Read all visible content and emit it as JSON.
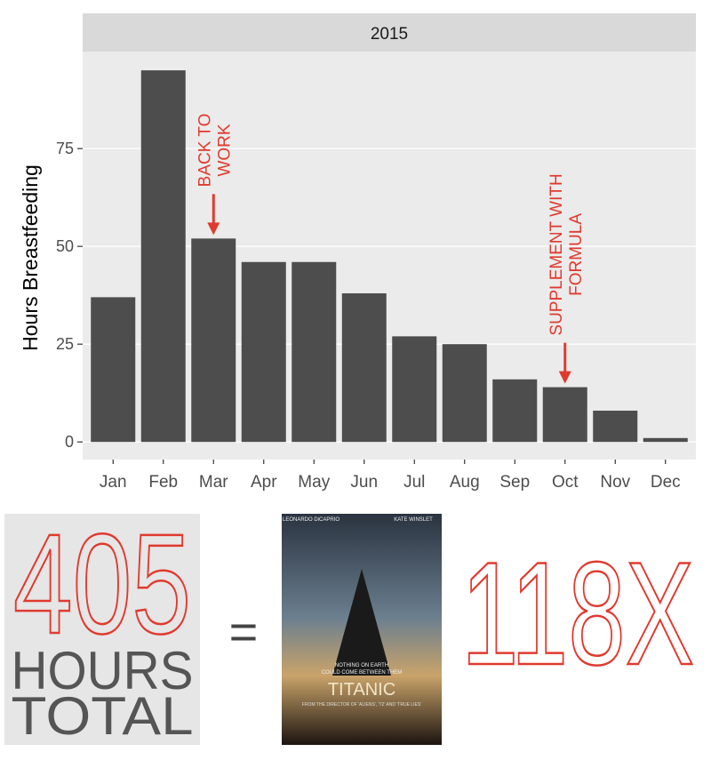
{
  "chart_data": {
    "type": "bar",
    "facet": "2015",
    "y_label": "Hours Breastfeeding",
    "categories": [
      "Jan",
      "Feb",
      "Mar",
      "Apr",
      "May",
      "Jun",
      "Jul",
      "Aug",
      "Sep",
      "Oct",
      "Nov",
      "Dec"
    ],
    "values": [
      37,
      95,
      52,
      46,
      46,
      38,
      27,
      25,
      16,
      14,
      8,
      1
    ],
    "color": "#4d4d4d",
    "ylim": [
      -4.5,
      99.8
    ],
    "yticks": [
      0,
      25,
      50,
      75
    ],
    "grid": true,
    "annotations": [
      {
        "lines": [
          "BACK TO",
          "WORK"
        ],
        "category": "Mar",
        "color": "#e03a2f"
      },
      {
        "lines": [
          "SUPPLEMENT WITH",
          "FORMULA"
        ],
        "category": "Oct",
        "color": "#e03a2f"
      }
    ]
  },
  "infographic": {
    "total": "405",
    "unit_lines": [
      "HOURS",
      "TOTAL"
    ],
    "equals": "=",
    "multiplier": "118X",
    "poster": {
      "actors": [
        "LEONARDO DiCAPRIO",
        "KATE WINSLET"
      ],
      "tagline": [
        "NOTHING ON EARTH",
        "COULD COME BETWEEN THEM"
      ],
      "title": "TITANIC",
      "credit": "FROM THE DIRECTOR OF 'ALIENS', 'T2' AND 'TRUE LIES'"
    }
  }
}
